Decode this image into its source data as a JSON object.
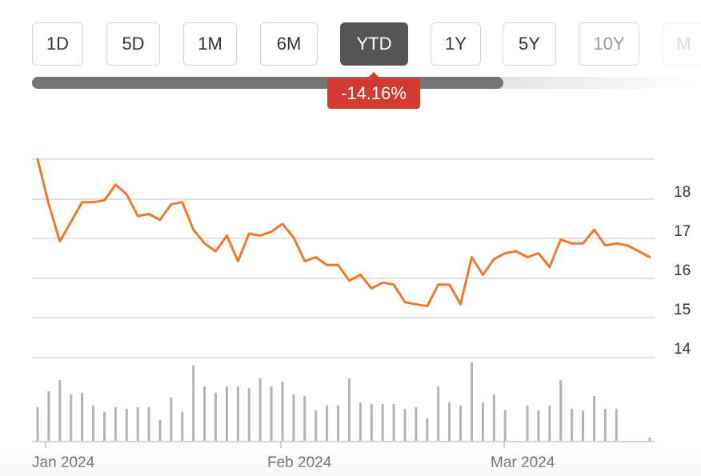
{
  "range_tabs": [
    {
      "label": "1D",
      "state": "normal"
    },
    {
      "label": "5D",
      "state": "normal"
    },
    {
      "label": "1M",
      "state": "normal"
    },
    {
      "label": "6M",
      "state": "normal"
    },
    {
      "label": "YTD",
      "state": "active"
    },
    {
      "label": "1Y",
      "state": "normal"
    },
    {
      "label": "5Y",
      "state": "normal"
    },
    {
      "label": "10Y",
      "state": "faded"
    },
    {
      "label": "M",
      "state": "ghost"
    }
  ],
  "change_badge": "-14.16%",
  "colors": {
    "price_line": "#f5772c",
    "volume_bar": "#b3b3b3",
    "gridline": "#d9d9d9",
    "badge_negative": "#d33a30",
    "active_tab": "#555555"
  },
  "chart_data": {
    "type": "line",
    "x_ticks": [
      "Jan 2024",
      "Feb 2024",
      "Mar 2024"
    ],
    "y_ticks": [
      14,
      15,
      16,
      17,
      18
    ],
    "ylim": [
      13.75,
      18.5
    ],
    "grid": true,
    "series": [
      {
        "values": [
          18.45,
          17.3,
          16.35,
          16.85,
          17.35,
          17.35,
          17.4,
          17.8,
          17.55,
          17.0,
          17.05,
          16.9,
          17.3,
          17.35,
          16.65,
          16.3,
          16.1,
          16.5,
          15.85,
          16.55,
          16.5,
          16.6,
          16.8,
          16.45,
          15.85,
          15.95,
          15.75,
          15.75,
          15.35,
          15.5,
          15.15,
          15.3,
          15.25,
          14.8,
          14.75,
          14.7,
          15.25,
          15.25,
          14.75,
          15.95,
          15.5,
          15.9,
          16.05,
          16.1,
          15.95,
          16.05,
          15.7,
          16.4,
          16.3,
          16.3,
          16.65,
          16.25,
          16.3,
          16.25,
          16.1,
          15.95
        ]
      }
    ],
    "volume": [
      42,
      62,
      76,
      58,
      60,
      44,
      36,
      42,
      40,
      42,
      42,
      26,
      54,
      36,
      94,
      68,
      60,
      68,
      68,
      66,
      78,
      68,
      74,
      58,
      56,
      38,
      44,
      44,
      78,
      48,
      46,
      46,
      46,
      40,
      42,
      28,
      68,
      48,
      44,
      98,
      48,
      58,
      38,
      0,
      44,
      38,
      44,
      76,
      40,
      38,
      56,
      40,
      40,
      0,
      0,
      4
    ]
  }
}
